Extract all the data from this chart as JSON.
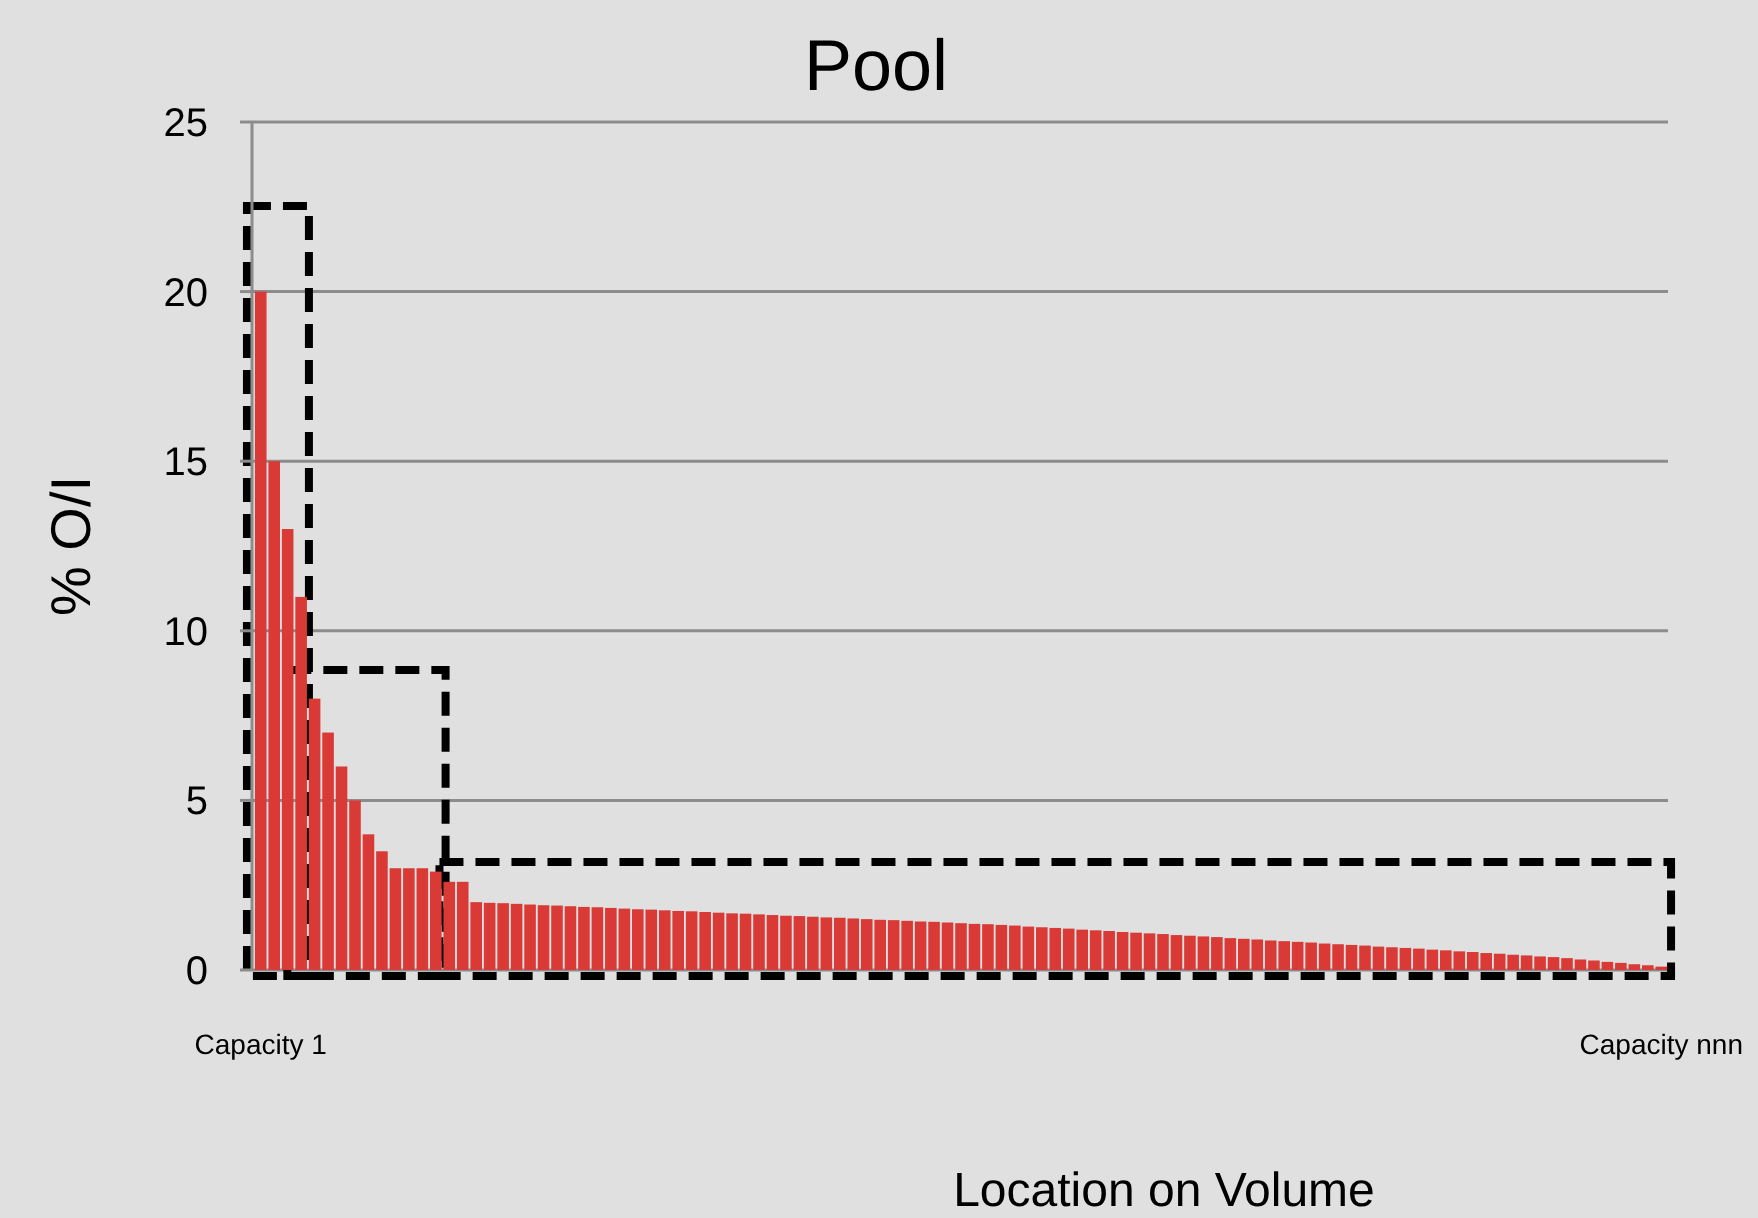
{
  "chart_data": {
    "type": "bar",
    "title": "Pool",
    "xlabel": "Location on Volume",
    "ylabel": "% O/I",
    "categories": [
      "Capacity 1",
      null,
      null,
      null,
      null,
      null,
      null,
      null,
      null,
      null,
      null,
      null,
      null,
      null,
      null,
      null,
      null,
      null,
      null,
      null,
      null,
      null,
      null,
      null,
      null,
      null,
      null,
      null,
      null,
      null,
      null,
      null,
      null,
      null,
      null,
      null,
      null,
      null,
      null,
      null,
      null,
      null,
      null,
      null,
      null,
      null,
      null,
      null,
      null,
      null,
      null,
      null,
      null,
      null,
      null,
      null,
      null,
      null,
      null,
      null,
      null,
      null,
      null,
      null,
      null,
      null,
      null,
      null,
      null,
      null,
      null,
      null,
      null,
      null,
      null,
      null,
      null,
      null,
      null,
      null,
      null,
      null,
      null,
      null,
      null,
      null,
      null,
      null,
      null,
      null,
      null,
      null,
      null,
      null,
      null,
      null,
      null,
      null,
      null,
      null,
      null,
      null,
      null,
      null,
      "Capacity nnn"
    ],
    "values": [
      20,
      15,
      13,
      11,
      8,
      7,
      6,
      5,
      4,
      3.5,
      3,
      3,
      3,
      2.9,
      2.6,
      2.6,
      2.0,
      1.98,
      1.97,
      1.95,
      1.93,
      1.91,
      1.9,
      1.88,
      1.86,
      1.85,
      1.83,
      1.81,
      1.79,
      1.78,
      1.76,
      1.74,
      1.73,
      1.71,
      1.69,
      1.67,
      1.66,
      1.64,
      1.62,
      1.6,
      1.59,
      1.57,
      1.55,
      1.54,
      1.52,
      1.5,
      1.48,
      1.47,
      1.45,
      1.43,
      1.42,
      1.4,
      1.38,
      1.36,
      1.35,
      1.33,
      1.31,
      1.28,
      1.26,
      1.24,
      1.22,
      1.19,
      1.17,
      1.15,
      1.12,
      1.1,
      1.08,
      1.06,
      1.03,
      1.01,
      0.99,
      0.97,
      0.94,
      0.92,
      0.9,
      0.87,
      0.85,
      0.83,
      0.81,
      0.78,
      0.76,
      0.74,
      0.72,
      0.69,
      0.67,
      0.65,
      0.63,
      0.6,
      0.58,
      0.55,
      0.53,
      0.5,
      0.48,
      0.45,
      0.43,
      0.4,
      0.38,
      0.35,
      0.31,
      0.28,
      0.24,
      0.21,
      0.17,
      0.14,
      0.1
    ],
    "color": "#d93a35",
    "ylim": [
      0,
      25
    ],
    "yticks": [
      0,
      5,
      10,
      15,
      20,
      25
    ],
    "grid": "y"
  }
}
